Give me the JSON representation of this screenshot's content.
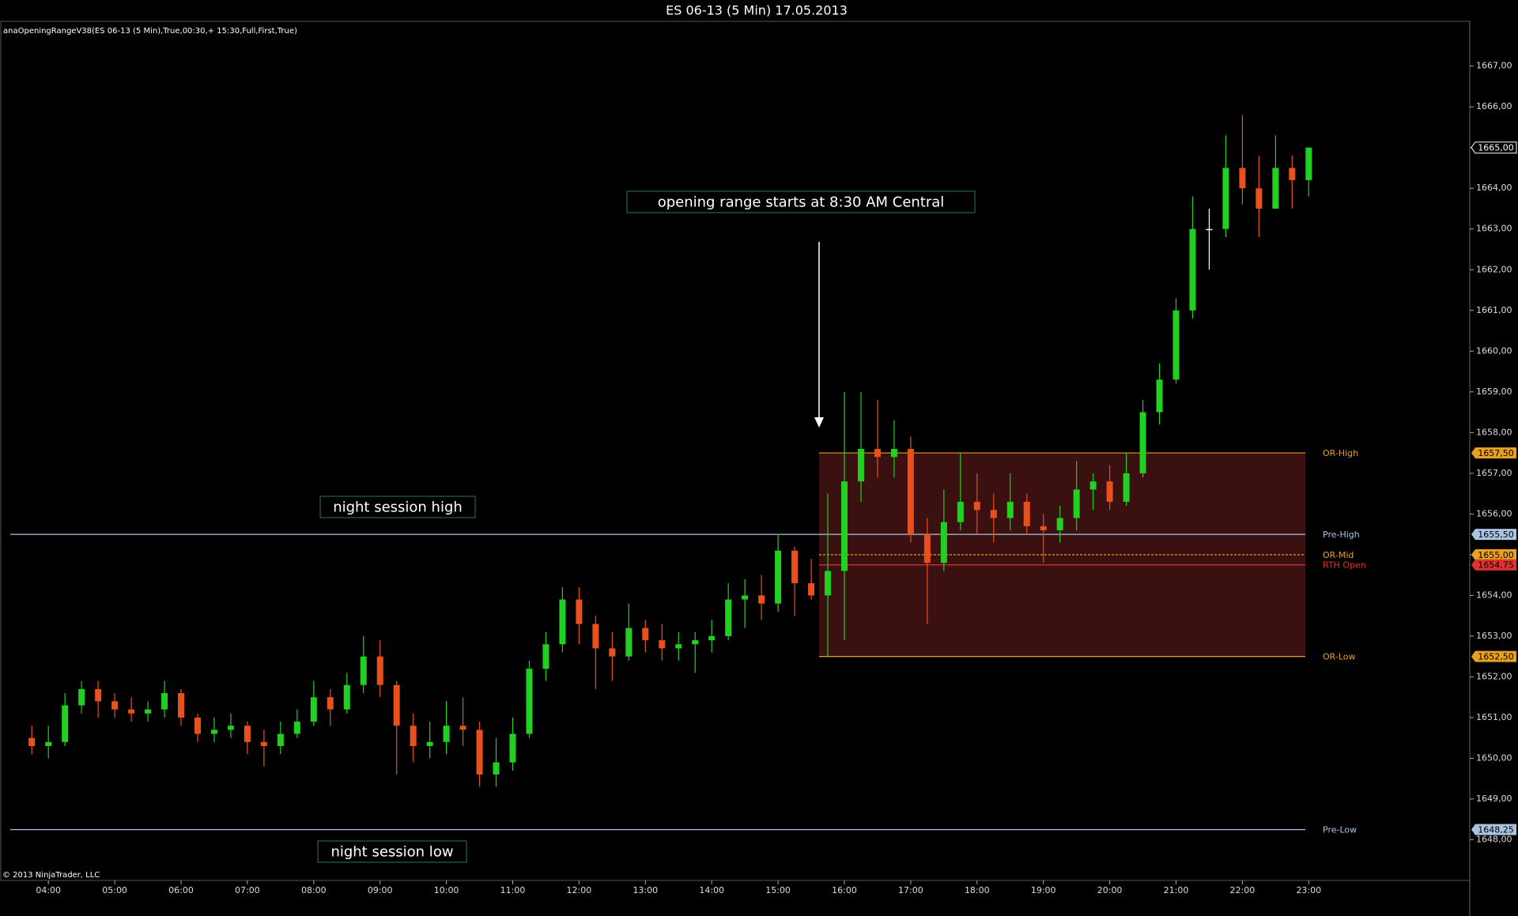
{
  "chart_data": {
    "type": "candlestick",
    "title": "ES 06-13 (5 Min)  17.05.2013",
    "indicator": "anaOpeningRangeV38(ES 06-13 (5 Min),True,00:30,+ 15:30,Full,First,True)",
    "copyright": "© 2013 NinjaTrader, LLC",
    "annotations": [
      "opening range starts at 8:30 AM Central",
      "night session high",
      "night session low"
    ],
    "x": [
      "03:45",
      "04:00",
      "04:15",
      "04:30",
      "04:45",
      "05:00",
      "05:15",
      "05:30",
      "05:45",
      "06:00",
      "06:15",
      "06:30",
      "06:45",
      "07:00",
      "07:15",
      "07:30",
      "07:45",
      "08:00",
      "08:15",
      "08:30",
      "08:45",
      "09:00",
      "09:15",
      "09:30",
      "09:45",
      "10:00",
      "10:15",
      "10:30",
      "10:45",
      "11:00",
      "11:15",
      "11:30",
      "11:45",
      "12:00",
      "12:15",
      "12:30",
      "12:45",
      "13:00",
      "13:15",
      "13:30",
      "13:45",
      "14:00",
      "14:15",
      "14:30",
      "14:45",
      "15:00",
      "15:15",
      "15:30",
      "15:45",
      "16:00",
      "16:15",
      "16:30",
      "16:45",
      "17:00",
      "17:15",
      "17:30",
      "17:45",
      "18:00",
      "18:15",
      "18:30",
      "18:45",
      "19:00",
      "19:15",
      "19:30",
      "19:45",
      "20:00",
      "20:15",
      "20:30",
      "20:45",
      "21:00",
      "21:15",
      "21:30",
      "21:45",
      "22:00",
      "22:15",
      "22:30",
      "22:45",
      "23:00"
    ],
    "open": [
      1650.5,
      1650.3,
      1650.4,
      1651.3,
      1651.7,
      1651.4,
      1651.2,
      1651.1,
      1651.2,
      1651.6,
      1651.0,
      1650.6,
      1650.7,
      1650.8,
      1650.4,
      1650.3,
      1650.6,
      1650.9,
      1651.5,
      1651.2,
      1651.8,
      1652.5,
      1651.8,
      1650.8,
      1650.3,
      1650.4,
      1650.8,
      1650.7,
      1649.6,
      1649.9,
      1650.6,
      1652.2,
      1652.8,
      1653.9,
      1653.3,
      1652.7,
      1652.5,
      1653.2,
      1652.9,
      1652.7,
      1652.8,
      1652.9,
      1653.0,
      1653.9,
      1654.0,
      1653.8,
      1655.1,
      1654.3,
      1654.0,
      1654.6,
      1656.8,
      1657.6,
      1657.4,
      1657.6,
      1655.5,
      1654.8,
      1655.8,
      1656.3,
      1656.1,
      1655.9,
      1656.3,
      1655.7,
      1655.6,
      1655.9,
      1656.6,
      1656.8,
      1656.3,
      1657.0,
      1658.5,
      1659.3,
      1661.0,
      1663.0,
      1663.0,
      1664.5,
      1664.0,
      1663.5,
      1664.5,
      1664.2
    ],
    "high": [
      1650.8,
      1650.8,
      1651.6,
      1651.9,
      1651.9,
      1651.6,
      1651.5,
      1651.4,
      1651.9,
      1651.7,
      1651.1,
      1651.0,
      1651.1,
      1650.9,
      1650.7,
      1650.9,
      1651.2,
      1651.9,
      1651.7,
      1652.1,
      1653.0,
      1652.9,
      1651.9,
      1651.1,
      1650.9,
      1651.4,
      1651.5,
      1650.9,
      1650.5,
      1651.0,
      1652.4,
      1653.1,
      1654.2,
      1654.2,
      1653.5,
      1653.1,
      1653.8,
      1653.4,
      1653.3,
      1653.1,
      1653.1,
      1653.4,
      1654.3,
      1654.4,
      1654.5,
      1655.5,
      1655.2,
      1654.9,
      1656.5,
      1659.0,
      1659.0,
      1658.8,
      1658.3,
      1657.9,
      1655.9,
      1656.6,
      1657.5,
      1657.0,
      1656.5,
      1657.0,
      1656.5,
      1656.0,
      1656.2,
      1657.3,
      1657.0,
      1657.2,
      1657.5,
      1658.8,
      1659.7,
      1661.3,
      1663.8,
      1663.5,
      1665.3,
      1665.8,
      1664.8,
      1665.3,
      1664.8,
      1665.0
    ],
    "low": [
      1650.1,
      1650.0,
      1650.3,
      1651.1,
      1651.0,
      1651.0,
      1650.9,
      1650.9,
      1651.0,
      1650.8,
      1650.4,
      1650.4,
      1650.5,
      1650.1,
      1649.8,
      1650.1,
      1650.5,
      1650.8,
      1650.8,
      1651.1,
      1651.6,
      1651.5,
      1649.6,
      1649.9,
      1650.0,
      1650.1,
      1650.3,
      1649.3,
      1649.3,
      1649.7,
      1650.5,
      1651.9,
      1652.6,
      1652.8,
      1651.7,
      1651.9,
      1652.4,
      1652.6,
      1652.4,
      1652.4,
      1652.1,
      1652.6,
      1652.9,
      1653.2,
      1653.4,
      1653.6,
      1653.5,
      1653.9,
      1652.5,
      1652.9,
      1656.3,
      1656.9,
      1656.9,
      1655.3,
      1653.3,
      1654.6,
      1655.6,
      1655.5,
      1655.3,
      1655.6,
      1655.5,
      1654.8,
      1655.3,
      1655.6,
      1656.1,
      1656.1,
      1656.2,
      1656.9,
      1658.2,
      1659.2,
      1660.8,
      1662.0,
      1662.8,
      1663.6,
      1662.8,
      1663.6,
      1663.5,
      1663.8
    ],
    "close": [
      1650.3,
      1650.4,
      1651.3,
      1651.7,
      1651.4,
      1651.2,
      1651.1,
      1651.2,
      1651.6,
      1651.0,
      1650.6,
      1650.7,
      1650.8,
      1650.4,
      1650.3,
      1650.6,
      1650.9,
      1651.5,
      1651.2,
      1651.8,
      1652.5,
      1651.8,
      1650.8,
      1650.3,
      1650.4,
      1650.8,
      1650.7,
      1649.6,
      1649.9,
      1650.6,
      1652.2,
      1652.8,
      1653.9,
      1653.3,
      1652.7,
      1652.5,
      1653.2,
      1652.9,
      1652.7,
      1652.8,
      1652.9,
      1653.0,
      1653.9,
      1654.0,
      1653.8,
      1655.1,
      1654.3,
      1654.0,
      1654.6,
      1656.8,
      1657.6,
      1657.4,
      1657.6,
      1655.5,
      1654.8,
      1655.8,
      1656.3,
      1656.1,
      1655.9,
      1656.3,
      1655.7,
      1655.6,
      1655.9,
      1656.6,
      1656.8,
      1656.3,
      1657.0,
      1658.5,
      1659.3,
      1661.0,
      1663.0,
      1663.0,
      1664.5,
      1664.0,
      1663.5,
      1664.5,
      1664.2,
      1665.0
    ],
    "up_color": "#22d022",
    "down_color": "#e8501c",
    "flat_color": "#ffffff",
    "last_price": {
      "value": 1665.0,
      "label": "1665,00"
    },
    "levels": [
      {
        "name": "OR-High",
        "value": 1657.5,
        "label": "1657,50",
        "color": "#e8a020",
        "kind": "or"
      },
      {
        "name": "Pre-High",
        "value": 1655.5,
        "label": "1655,50",
        "color": "#a8c4e0",
        "kind": "pre"
      },
      {
        "name": "OR-Mid",
        "value": 1655.0,
        "label": "1655,00",
        "color": "#e8a020",
        "kind": "mid"
      },
      {
        "name": "RTH Open",
        "value": 1654.75,
        "label": "1654,75",
        "color": "#e03030",
        "kind": "rth"
      },
      {
        "name": "OR-Low",
        "value": 1652.5,
        "label": "1652,50",
        "color": "#e8a020",
        "kind": "or"
      },
      {
        "name": "Pre-Low",
        "value": 1648.25,
        "label": "1648,25",
        "color": "#a8c4e0",
        "kind": "pre"
      }
    ],
    "range_fill": "#3a1010",
    "ylim": [
      1647.0,
      1668.1
    ],
    "yticks": [
      {
        "value": 1648,
        "label": "1648,00"
      },
      {
        "value": 1649,
        "label": "1649,00"
      },
      {
        "value": 1650,
        "label": "1650,00"
      },
      {
        "value": 1651,
        "label": "1651,00"
      },
      {
        "value": 1652,
        "label": "1652,00"
      },
      {
        "value": 1653,
        "label": "1653,00"
      },
      {
        "value": 1654,
        "label": "1654,00"
      },
      {
        "value": 1655,
        "label": "1655,00"
      },
      {
        "value": 1656,
        "label": "1656,00"
      },
      {
        "value": 1657,
        "label": "1657,00"
      },
      {
        "value": 1658,
        "label": "1658,00"
      },
      {
        "value": 1659,
        "label": "1659,00"
      },
      {
        "value": 1660,
        "label": "1660,00"
      },
      {
        "value": 1661,
        "label": "1661,00"
      },
      {
        "value": 1662,
        "label": "1662,00"
      },
      {
        "value": 1663,
        "label": "1663,00"
      },
      {
        "value": 1664,
        "label": "1664,00"
      },
      {
        "value": 1665,
        "label": "1665,00"
      },
      {
        "value": 1666,
        "label": "1666,00"
      },
      {
        "value": 1667,
        "label": "1667,00"
      }
    ],
    "xticks": [
      "04:00",
      "05:00",
      "06:00",
      "07:00",
      "08:00",
      "09:00",
      "10:00",
      "11:00",
      "12:00",
      "13:00",
      "14:00",
      "15:00",
      "16:00",
      "17:00",
      "18:00",
      "19:00",
      "20:00",
      "21:00",
      "22:00",
      "23:00"
    ]
  }
}
